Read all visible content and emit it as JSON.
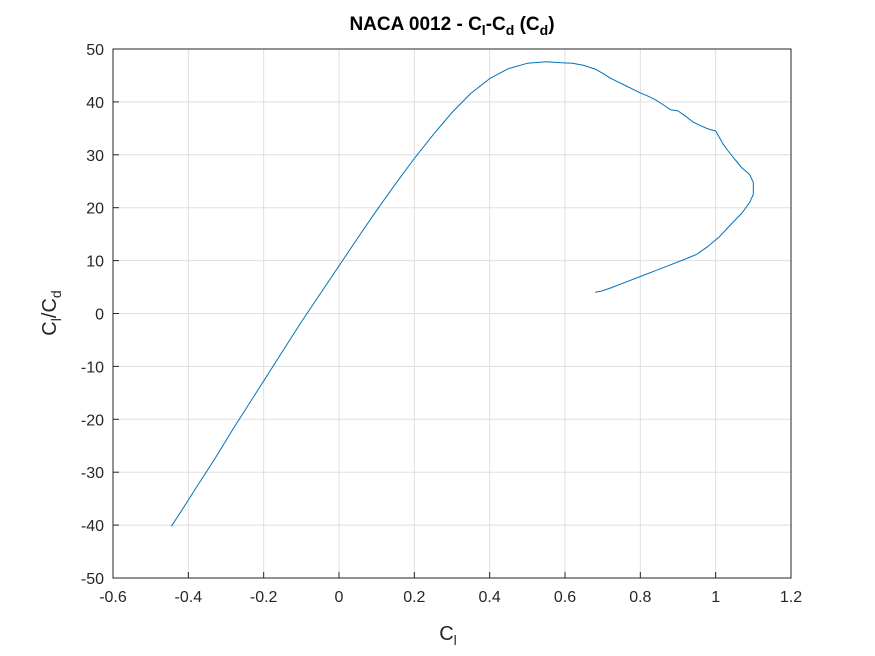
{
  "chart_data": {
    "type": "line",
    "title": {
      "main": "NACA 0012 - C",
      "sub1": "l",
      "mid": "-C",
      "sub2": "d",
      "open": " (C",
      "sub3": "d",
      "close": ")"
    },
    "xlabel": {
      "main": "C",
      "sub": "l"
    },
    "ylabel": {
      "main1": "C",
      "sub1": "l",
      "main2": "/C",
      "sub2": "d"
    },
    "xlim": [
      -0.6,
      1.2
    ],
    "ylim": [
      -50,
      50
    ],
    "xticks": [
      -0.6,
      -0.4,
      -0.2,
      0,
      0.2,
      0.4,
      0.6,
      0.8,
      1,
      1.2
    ],
    "yticks": [
      -50,
      -40,
      -30,
      -20,
      -10,
      0,
      10,
      20,
      30,
      40,
      50
    ],
    "xtick_labels": [
      "-0.6",
      "-0.4",
      "-0.2",
      "0",
      "0.2",
      "0.4",
      "0.6",
      "0.8",
      "1",
      "1.2"
    ],
    "ytick_labels": [
      "-50",
      "-40",
      "-30",
      "-20",
      "-10",
      "0",
      "10",
      "20",
      "30",
      "40",
      "50"
    ],
    "grid": true,
    "line_color": "#0072bd",
    "series": [
      {
        "x": [
          -0.445,
          -0.42,
          -0.38,
          -0.33,
          -0.28,
          -0.22,
          -0.16,
          -0.1,
          -0.05,
          0.0,
          0.05,
          0.1,
          0.15,
          0.2,
          0.25,
          0.3,
          0.35,
          0.4,
          0.45,
          0.5,
          0.55,
          0.59,
          0.62,
          0.65,
          0.68,
          0.7,
          0.72,
          0.74,
          0.76,
          0.78,
          0.8,
          0.82,
          0.84,
          0.86,
          0.88,
          0.9,
          0.92,
          0.94,
          0.96,
          0.98,
          1.0,
          1.02,
          1.03,
          1.05,
          1.07,
          1.09,
          1.1,
          1.1,
          1.09,
          1.07,
          1.04,
          1.01,
          0.98,
          0.95,
          0.92,
          0.88,
          0.84,
          0.8,
          0.76,
          0.72,
          0.695,
          0.68
        ],
        "y": [
          -40.2,
          -37.5,
          -33.0,
          -27.5,
          -21.7,
          -15.0,
          -8.3,
          -1.6,
          3.7,
          9.0,
          14.3,
          19.5,
          24.5,
          29.3,
          33.8,
          38.0,
          41.6,
          44.4,
          46.3,
          47.3,
          47.6,
          47.4,
          47.3,
          46.9,
          46.2,
          45.4,
          44.5,
          43.8,
          43.1,
          42.4,
          41.7,
          41.1,
          40.4,
          39.5,
          38.5,
          38.3,
          37.3,
          36.2,
          35.5,
          34.9,
          34.5,
          32.0,
          31.0,
          29.2,
          27.5,
          26.3,
          24.8,
          22.5,
          21.0,
          19.0,
          16.8,
          14.5,
          12.7,
          11.2,
          10.3,
          9.2,
          8.1,
          7.0,
          5.9,
          4.8,
          4.2,
          4.0
        ]
      }
    ]
  }
}
